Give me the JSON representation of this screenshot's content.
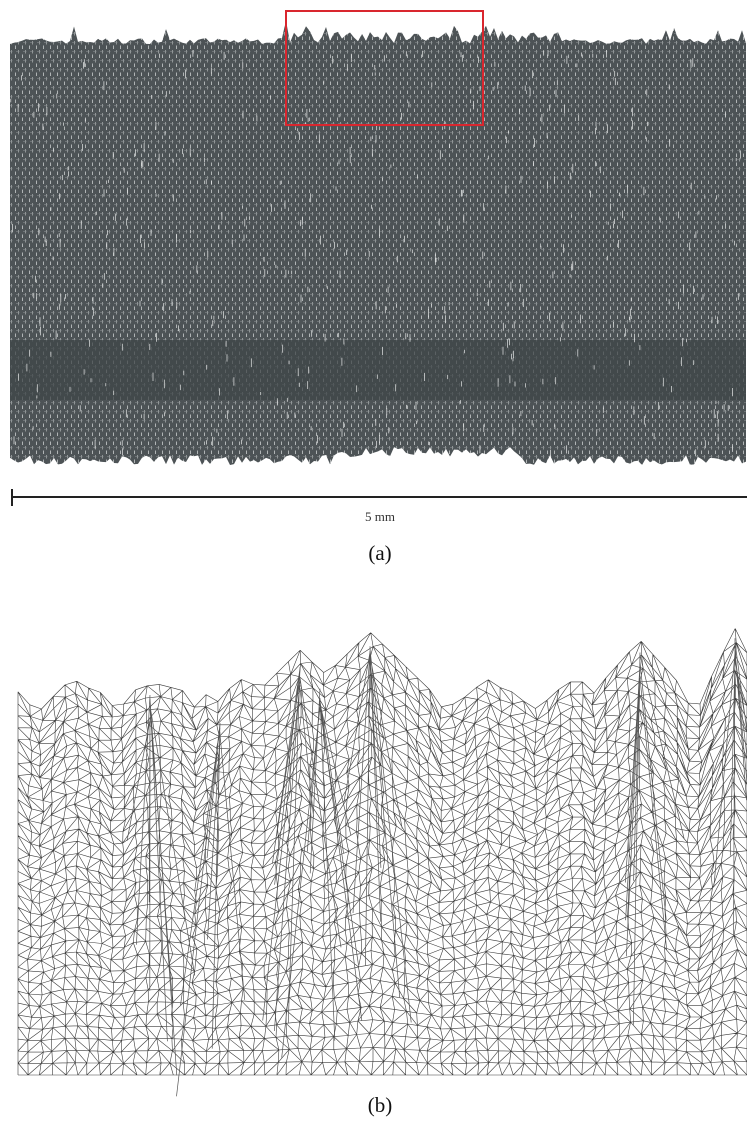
{
  "figure": {
    "panels": [
      {
        "label": "(a)",
        "scale_bar": "5 mm"
      },
      {
        "label": "(b)"
      }
    ]
  }
}
